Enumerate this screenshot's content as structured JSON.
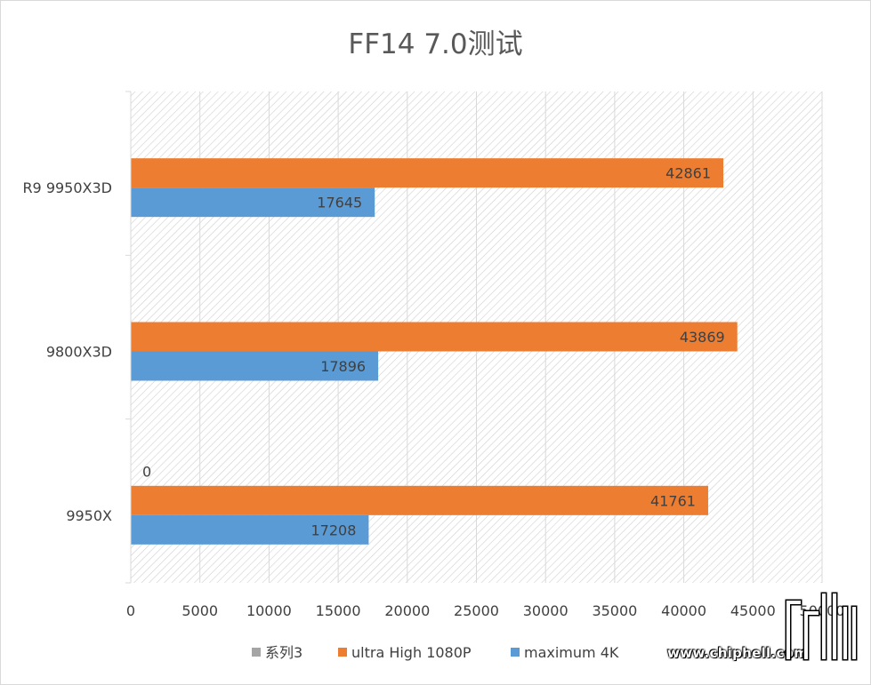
{
  "chart_data": {
    "type": "bar",
    "orientation": "horizontal",
    "title": "FF14 7.0测试",
    "categories": [
      "R9 9950X3D",
      "9800X3D",
      "9950X"
    ],
    "series": [
      {
        "name": "系列3",
        "values": [
          null,
          null,
          0
        ],
        "color": "#a5a5a5",
        "labels": [
          "",
          "",
          "0"
        ]
      },
      {
        "name": "ultra High 1080P",
        "values": [
          42861,
          43869,
          41761
        ],
        "color": "#ed7d31",
        "labels": [
          "42861",
          "43869",
          "41761"
        ]
      },
      {
        "name": "maximum 4K",
        "values": [
          17645,
          17896,
          17208
        ],
        "color": "#5b9bd5",
        "labels": [
          "17645",
          "17896",
          "17208"
        ]
      }
    ],
    "xlim": [
      0,
      50000
    ],
    "xticks": [
      "0",
      "5000",
      "10000",
      "15000",
      "20000",
      "25000",
      "30000",
      "35000",
      "40000",
      "45000",
      "50000"
    ],
    "grid": true,
    "legend_position": "bottom"
  },
  "watermark": {
    "text": "www.chiphell.com",
    "logo_name": "chiphell-logo"
  }
}
